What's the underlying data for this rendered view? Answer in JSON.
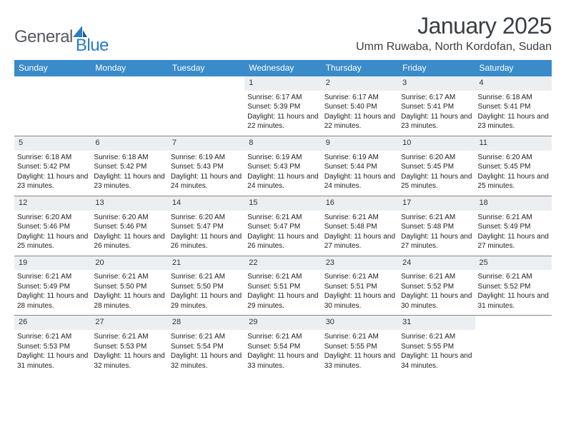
{
  "brand": {
    "word1": "General",
    "word2": "Blue"
  },
  "title": {
    "month": "January 2025",
    "location": "Umm Ruwaba, North Kordofan, Sudan"
  },
  "colors": {
    "header_bg": "#3a8bc9",
    "header_text": "#ffffff",
    "daynum_bg": "#eceff2",
    "text": "#222222",
    "brand_gray": "#555a60",
    "brand_blue": "#2b7bbf",
    "rule": "#888888",
    "page_bg": "#ffffff"
  },
  "typography": {
    "title_pt": 32,
    "location_pt": 16,
    "weekday_pt": 12,
    "daynum_pt": 11,
    "body_pt": 10
  },
  "weekdays": [
    "Sunday",
    "Monday",
    "Tuesday",
    "Wednesday",
    "Thursday",
    "Friday",
    "Saturday"
  ],
  "weeks": [
    [
      {
        "n": "",
        "sr": "",
        "ss": "",
        "dl": ""
      },
      {
        "n": "",
        "sr": "",
        "ss": "",
        "dl": ""
      },
      {
        "n": "",
        "sr": "",
        "ss": "",
        "dl": ""
      },
      {
        "n": "1",
        "sr": "6:17 AM",
        "ss": "5:39 PM",
        "dl": "11 hours and 22 minutes."
      },
      {
        "n": "2",
        "sr": "6:17 AM",
        "ss": "5:40 PM",
        "dl": "11 hours and 22 minutes."
      },
      {
        "n": "3",
        "sr": "6:17 AM",
        "ss": "5:41 PM",
        "dl": "11 hours and 23 minutes."
      },
      {
        "n": "4",
        "sr": "6:18 AM",
        "ss": "5:41 PM",
        "dl": "11 hours and 23 minutes."
      }
    ],
    [
      {
        "n": "5",
        "sr": "6:18 AM",
        "ss": "5:42 PM",
        "dl": "11 hours and 23 minutes."
      },
      {
        "n": "6",
        "sr": "6:18 AM",
        "ss": "5:42 PM",
        "dl": "11 hours and 23 minutes."
      },
      {
        "n": "7",
        "sr": "6:19 AM",
        "ss": "5:43 PM",
        "dl": "11 hours and 24 minutes."
      },
      {
        "n": "8",
        "sr": "6:19 AM",
        "ss": "5:43 PM",
        "dl": "11 hours and 24 minutes."
      },
      {
        "n": "9",
        "sr": "6:19 AM",
        "ss": "5:44 PM",
        "dl": "11 hours and 24 minutes."
      },
      {
        "n": "10",
        "sr": "6:20 AM",
        "ss": "5:45 PM",
        "dl": "11 hours and 25 minutes."
      },
      {
        "n": "11",
        "sr": "6:20 AM",
        "ss": "5:45 PM",
        "dl": "11 hours and 25 minutes."
      }
    ],
    [
      {
        "n": "12",
        "sr": "6:20 AM",
        "ss": "5:46 PM",
        "dl": "11 hours and 25 minutes."
      },
      {
        "n": "13",
        "sr": "6:20 AM",
        "ss": "5:46 PM",
        "dl": "11 hours and 26 minutes."
      },
      {
        "n": "14",
        "sr": "6:20 AM",
        "ss": "5:47 PM",
        "dl": "11 hours and 26 minutes."
      },
      {
        "n": "15",
        "sr": "6:21 AM",
        "ss": "5:47 PM",
        "dl": "11 hours and 26 minutes."
      },
      {
        "n": "16",
        "sr": "6:21 AM",
        "ss": "5:48 PM",
        "dl": "11 hours and 27 minutes."
      },
      {
        "n": "17",
        "sr": "6:21 AM",
        "ss": "5:48 PM",
        "dl": "11 hours and 27 minutes."
      },
      {
        "n": "18",
        "sr": "6:21 AM",
        "ss": "5:49 PM",
        "dl": "11 hours and 27 minutes."
      }
    ],
    [
      {
        "n": "19",
        "sr": "6:21 AM",
        "ss": "5:49 PM",
        "dl": "11 hours and 28 minutes."
      },
      {
        "n": "20",
        "sr": "6:21 AM",
        "ss": "5:50 PM",
        "dl": "11 hours and 28 minutes."
      },
      {
        "n": "21",
        "sr": "6:21 AM",
        "ss": "5:50 PM",
        "dl": "11 hours and 29 minutes."
      },
      {
        "n": "22",
        "sr": "6:21 AM",
        "ss": "5:51 PM",
        "dl": "11 hours and 29 minutes."
      },
      {
        "n": "23",
        "sr": "6:21 AM",
        "ss": "5:51 PM",
        "dl": "11 hours and 30 minutes."
      },
      {
        "n": "24",
        "sr": "6:21 AM",
        "ss": "5:52 PM",
        "dl": "11 hours and 30 minutes."
      },
      {
        "n": "25",
        "sr": "6:21 AM",
        "ss": "5:52 PM",
        "dl": "11 hours and 31 minutes."
      }
    ],
    [
      {
        "n": "26",
        "sr": "6:21 AM",
        "ss": "5:53 PM",
        "dl": "11 hours and 31 minutes."
      },
      {
        "n": "27",
        "sr": "6:21 AM",
        "ss": "5:53 PM",
        "dl": "11 hours and 32 minutes."
      },
      {
        "n": "28",
        "sr": "6:21 AM",
        "ss": "5:54 PM",
        "dl": "11 hours and 32 minutes."
      },
      {
        "n": "29",
        "sr": "6:21 AM",
        "ss": "5:54 PM",
        "dl": "11 hours and 33 minutes."
      },
      {
        "n": "30",
        "sr": "6:21 AM",
        "ss": "5:55 PM",
        "dl": "11 hours and 33 minutes."
      },
      {
        "n": "31",
        "sr": "6:21 AM",
        "ss": "5:55 PM",
        "dl": "11 hours and 34 minutes."
      },
      {
        "n": "",
        "sr": "",
        "ss": "",
        "dl": ""
      }
    ]
  ],
  "labels": {
    "sunrise": "Sunrise:",
    "sunset": "Sunset:",
    "daylight": "Daylight:"
  }
}
